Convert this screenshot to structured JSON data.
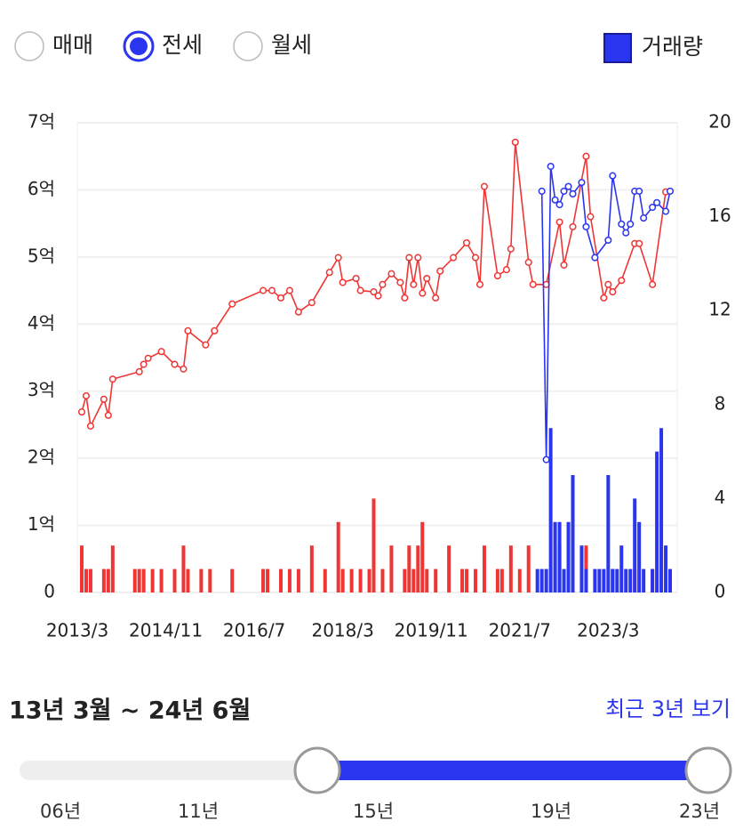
{
  "filters": {
    "options": [
      "매매",
      "전세",
      "월세"
    ],
    "selected_index": 1
  },
  "chart_data": {
    "type": "combo",
    "xlim": [
      "2013/3",
      "2024/6"
    ],
    "xticks": [
      "2013/3",
      "2014/11",
      "2016/7",
      "2018/3",
      "2019/11",
      "2021/7",
      "2023/3"
    ],
    "ylim": [
      0,
      7
    ],
    "yticks": [
      0,
      {
        "value": 1,
        "label": "1억"
      },
      {
        "value": 2,
        "label": "2억"
      },
      {
        "value": 3,
        "label": "3억"
      },
      {
        "value": 4,
        "label": "4억"
      },
      {
        "value": 5,
        "label": "5억"
      },
      {
        "value": 6,
        "label": "6억"
      },
      {
        "value": 7,
        "label": "7억"
      }
    ],
    "y2lim": [
      0,
      20
    ],
    "y2ticks": [
      0,
      4,
      8,
      12,
      16,
      20
    ],
    "grid": true,
    "legend": "top-right",
    "series": [
      {
        "type": "bar",
        "axis": "y2",
        "color": "#f03535",
        "x": [
          "2013/4",
          "2013/5",
          "2013/6",
          "2013/9",
          "2013/10",
          "2013/11",
          "2014/4",
          "2014/5",
          "2014/6",
          "2014/8",
          "2014/10",
          "2015/1",
          "2015/3",
          "2015/4",
          "2015/7",
          "2015/9",
          "2016/2",
          "2016/9",
          "2016/10",
          "2017/1",
          "2017/3",
          "2017/5",
          "2017/8",
          "2017/11",
          "2018/2",
          "2018/3",
          "2018/5",
          "2018/7",
          "2018/9",
          "2018/10",
          "2018/12",
          "2019/2",
          "2019/5",
          "2019/6",
          "2019/7",
          "2019/8",
          "2019/9",
          "2019/10",
          "2019/12",
          "2020/3",
          "2020/6",
          "2020/7",
          "2020/9",
          "2020/11",
          "2021/2",
          "2021/3",
          "2021/5",
          "2021/7",
          "2021/9",
          "2022/4",
          "2022/10",
          "2023/4",
          "2023/9",
          "2024/1"
        ],
        "values": [
          2,
          1,
          1,
          1,
          1,
          2,
          1,
          1,
          1,
          1,
          1,
          1,
          2,
          1,
          1,
          1,
          1,
          1,
          1,
          1,
          1,
          1,
          2,
          1,
          3,
          1,
          1,
          1,
          1,
          4,
          1,
          2,
          1,
          2,
          1,
          2,
          3,
          1,
          1,
          2,
          1,
          1,
          1,
          2,
          1,
          1,
          2,
          1,
          2,
          2,
          2,
          1,
          1,
          1
        ]
      },
      {
        "type": "bar",
        "axis": "y2",
        "name": "거래량",
        "color": "#2a35f0",
        "x": [
          "2021/11",
          "2021/12",
          "2022/1",
          "2022/2",
          "2022/3",
          "2022/4",
          "2022/5",
          "2022/6",
          "2022/7",
          "2022/9",
          "2022/10",
          "2022/12",
          "2023/1",
          "2023/2",
          "2023/3",
          "2023/4",
          "2023/5",
          "2023/6",
          "2023/7",
          "2023/8",
          "2023/9",
          "2023/10",
          "2023/11",
          "2024/1",
          "2024/2",
          "2024/3",
          "2024/4",
          "2024/5"
        ],
        "values": [
          1,
          1,
          1,
          7,
          3,
          3,
          1,
          3,
          5,
          2,
          1,
          1,
          1,
          1,
          5,
          1,
          1,
          2,
          1,
          1,
          4,
          3,
          1,
          1,
          6,
          7,
          2,
          1
        ]
      },
      {
        "type": "line",
        "color": "#f03535",
        "x": [
          "2013/4",
          "2013/5",
          "2013/6",
          "2013/9",
          "2013/10",
          "2013/11",
          "2014/5",
          "2014/6",
          "2014/7",
          "2014/10",
          "2015/1",
          "2015/3",
          "2015/4",
          "2015/8",
          "2015/10",
          "2016/2",
          "2016/9",
          "2016/11",
          "2017/1",
          "2017/3",
          "2017/5",
          "2017/8",
          "2017/12",
          "2018/2",
          "2018/3",
          "2018/6",
          "2018/7",
          "2018/10",
          "2018/11",
          "2018/12",
          "2019/2",
          "2019/4",
          "2019/5",
          "2019/6",
          "2019/7",
          "2019/8",
          "2019/9",
          "2019/10",
          "2019/12",
          "2020/1",
          "2020/4",
          "2020/7",
          "2020/9",
          "2020/10",
          "2020/11",
          "2021/2",
          "2021/4",
          "2021/5",
          "2021/6",
          "2021/9",
          "2021/10",
          "2022/1",
          "2022/4",
          "2022/5",
          "2022/7",
          "2022/10",
          "2022/11",
          "2023/2",
          "2023/3",
          "2023/4",
          "2023/6",
          "2023/9",
          "2023/10",
          "2024/1",
          "2024/4"
        ],
        "values": [
          2.69,
          2.93,
          2.48,
          2.88,
          2.64,
          3.18,
          3.29,
          3.4,
          3.49,
          3.59,
          3.4,
          3.33,
          3.9,
          3.69,
          3.9,
          4.3,
          4.5,
          4.5,
          4.39,
          4.5,
          4.18,
          4.32,
          4.77,
          4.99,
          4.62,
          4.68,
          4.5,
          4.48,
          4.42,
          4.59,
          4.75,
          4.62,
          4.39,
          4.99,
          4.59,
          4.99,
          4.46,
          4.68,
          4.39,
          4.79,
          4.99,
          5.21,
          4.99,
          4.59,
          6.05,
          4.72,
          4.81,
          5.12,
          6.71,
          4.92,
          4.59,
          4.59,
          5.52,
          4.88,
          5.45,
          6.5,
          5.6,
          4.39,
          4.59,
          4.48,
          4.65,
          5.2,
          5.2,
          4.59,
          5.97
        ]
      },
      {
        "type": "line",
        "color": "#2a35f0",
        "x": [
          "2021/12",
          "2022/1",
          "2022/2",
          "2022/3",
          "2022/4",
          "2022/5",
          "2022/6",
          "2022/7",
          "2022/9",
          "2022/10",
          "2022/12",
          "2023/3",
          "2023/4",
          "2023/6",
          "2023/7",
          "2023/8",
          "2023/9",
          "2023/10",
          "2023/11",
          "2024/1",
          "2024/2",
          "2024/4",
          "2024/5"
        ],
        "values": [
          5.98,
          1.98,
          6.35,
          5.85,
          5.78,
          5.98,
          6.05,
          5.94,
          6.11,
          5.45,
          4.99,
          5.25,
          6.21,
          5.49,
          5.36,
          5.49,
          5.98,
          5.98,
          5.58,
          5.74,
          5.81,
          5.68,
          5.98
        ]
      }
    ]
  },
  "range": {
    "label": "13년 3월 ~ 24년 6월",
    "recent_link": "최근 3년 보기"
  },
  "slider": {
    "labels": [
      "06년",
      "11년",
      "15년",
      "19년",
      "23년"
    ]
  }
}
